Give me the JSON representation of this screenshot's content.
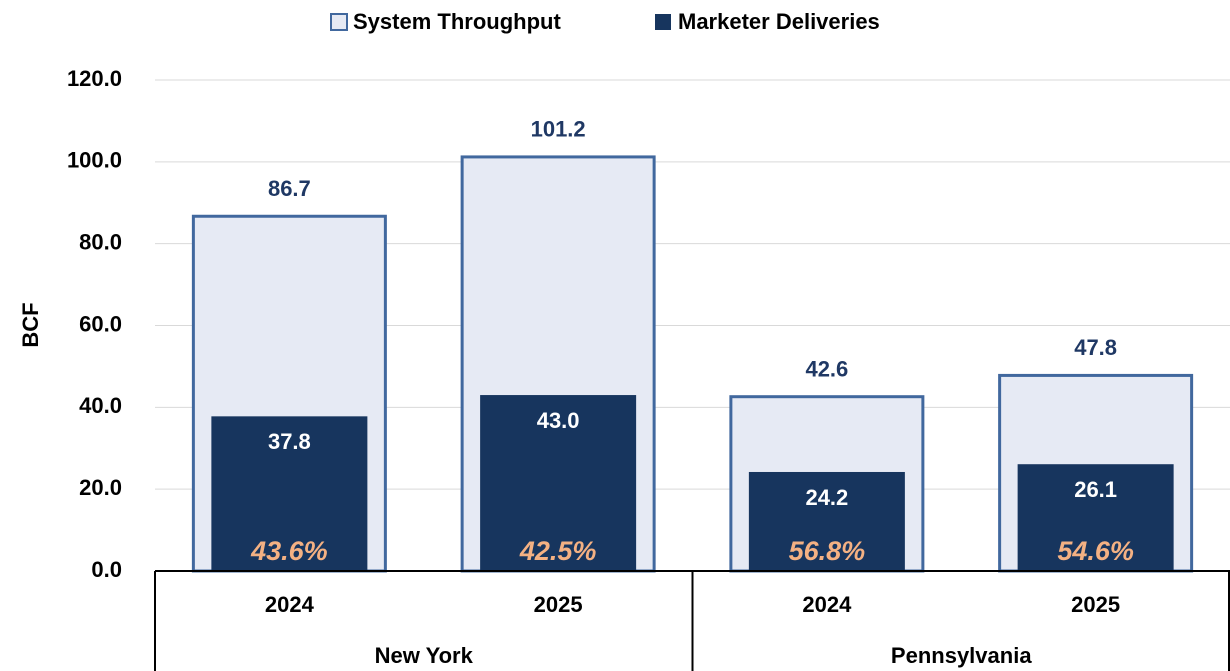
{
  "chart_data": {
    "type": "overlap-bar",
    "y_label": "BCF",
    "categories": [
      "2024",
      "2025",
      "2024",
      "2025"
    ],
    "groups": [
      "New York",
      "Pennsylvania"
    ],
    "series": [
      {
        "name": "System Throughput",
        "color": "#e6eaf4",
        "edge_color": "#41689e",
        "label_color": "#1f3864",
        "values": [
          86.7,
          101.2,
          42.6,
          47.8
        ],
        "value_labels": [
          "86.7",
          "101.2",
          "42.6",
          "47.8"
        ]
      },
      {
        "name": "Marketer Deliveries",
        "color": "#17355e",
        "label_color": "#ffffff",
        "values": [
          37.8,
          43.0,
          24.2,
          26.1
        ],
        "value_labels": [
          "37.8",
          "43.0",
          "24.2",
          "26.1"
        ]
      }
    ],
    "shares": {
      "color": "#f4b183",
      "values": [
        43.6,
        42.5,
        56.8,
        54.6
      ],
      "value_labels": [
        "43.6%",
        "42.5%",
        "56.8%",
        "54.6%"
      ]
    },
    "ylim": [
      0,
      120
    ],
    "yticks": [
      {
        "value": 0,
        "label": "0.0"
      },
      {
        "value": 20,
        "label": "20.0"
      },
      {
        "value": 40,
        "label": "40.0"
      },
      {
        "value": 60,
        "label": "60.0"
      },
      {
        "value": 80,
        "label": "80.0"
      },
      {
        "value": 100,
        "label": "100.0"
      },
      {
        "value": 120,
        "label": "120.0"
      }
    ],
    "grid": true
  }
}
